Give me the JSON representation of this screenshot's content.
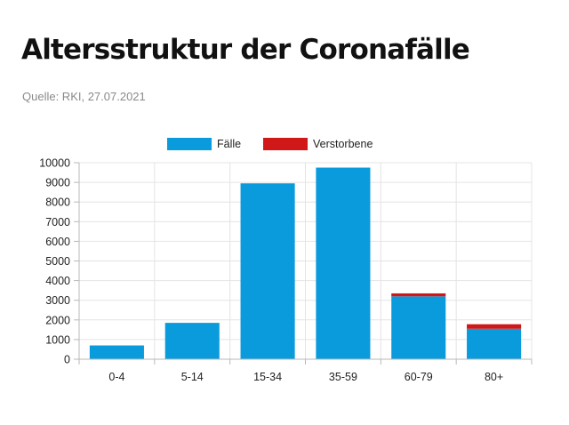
{
  "title": "Altersstruktur der Coronafälle",
  "source": "Quelle: RKI, 27.07.2021",
  "colors": {
    "cases": "#0a9bdd",
    "deaths": "#d11818",
    "grid": "#e4e4e4",
    "axis": "#b8b8b8"
  },
  "chart_data": {
    "type": "bar",
    "stacked": true,
    "categories": [
      "0-4",
      "5-14",
      "15-34",
      "35-59",
      "60-79",
      "80+"
    ],
    "series": [
      {
        "name": "Fälle",
        "values": [
          700,
          1850,
          8950,
          9750,
          3200,
          1550
        ]
      },
      {
        "name": "Verstorbene",
        "values": [
          0,
          0,
          0,
          0,
          150,
          230
        ]
      }
    ],
    "ylim": [
      0,
      10000
    ],
    "yticks": [
      0,
      1000,
      2000,
      3000,
      4000,
      5000,
      6000,
      7000,
      8000,
      9000,
      10000
    ],
    "grid": true,
    "legend": "top-center"
  }
}
